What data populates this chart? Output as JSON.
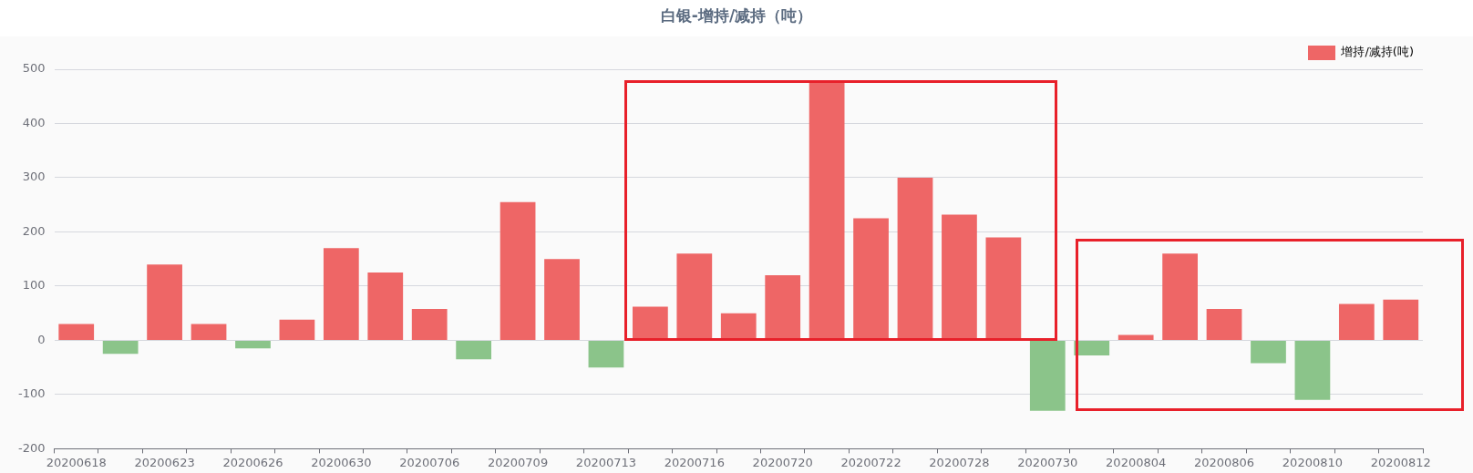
{
  "chart_data": {
    "type": "bar",
    "title": "白银-增持/减持（吨）",
    "categories": [
      "20200618",
      null,
      "20200623",
      null,
      "20200626",
      null,
      "20200630",
      null,
      "20200706",
      null,
      "20200709",
      null,
      "20200713",
      null,
      "20200716",
      null,
      "20200720",
      null,
      "20200722",
      null,
      "20200728",
      null,
      "20200730",
      null,
      "20200804",
      null,
      "20200806",
      null,
      "20200810",
      null,
      "20200812"
    ],
    "series": [
      {
        "name": "增持/减持(吨)",
        "color": "#ee6666",
        "values": [
          30,
          -25,
          140,
          30,
          -15,
          38,
          170,
          125,
          58,
          -35,
          255,
          150,
          -50,
          62,
          160,
          50,
          120,
          478,
          225,
          300,
          232,
          190,
          -130,
          -28,
          10,
          160,
          58,
          -42,
          -110,
          67,
          75
        ],
        "colors": [
          "#ee6666",
          "#8bc48a",
          "#ee6666",
          "#ee6666",
          "#8bc48a",
          "#ee6666",
          "#ee6666",
          "#ee6666",
          "#ee6666",
          "#8bc48a",
          "#ee6666",
          "#ee6666",
          "#8bc48a",
          "#ee6666",
          "#ee6666",
          "#ee6666",
          "#ee6666",
          "#ee6666",
          "#ee6666",
          "#ee6666",
          "#ee6666",
          "#ee6666",
          "#8bc48a",
          "#8bc48a",
          "#ee6666",
          "#ee6666",
          "#ee6666",
          "#8bc48a",
          "#8bc48a",
          "#ee6666",
          "#ee6666"
        ]
      }
    ],
    "ylim": [
      -200,
      500
    ],
    "yticks": [
      -200,
      -100,
      0,
      100,
      200,
      300,
      400,
      500
    ],
    "grid": "y",
    "legend": "top right"
  }
}
